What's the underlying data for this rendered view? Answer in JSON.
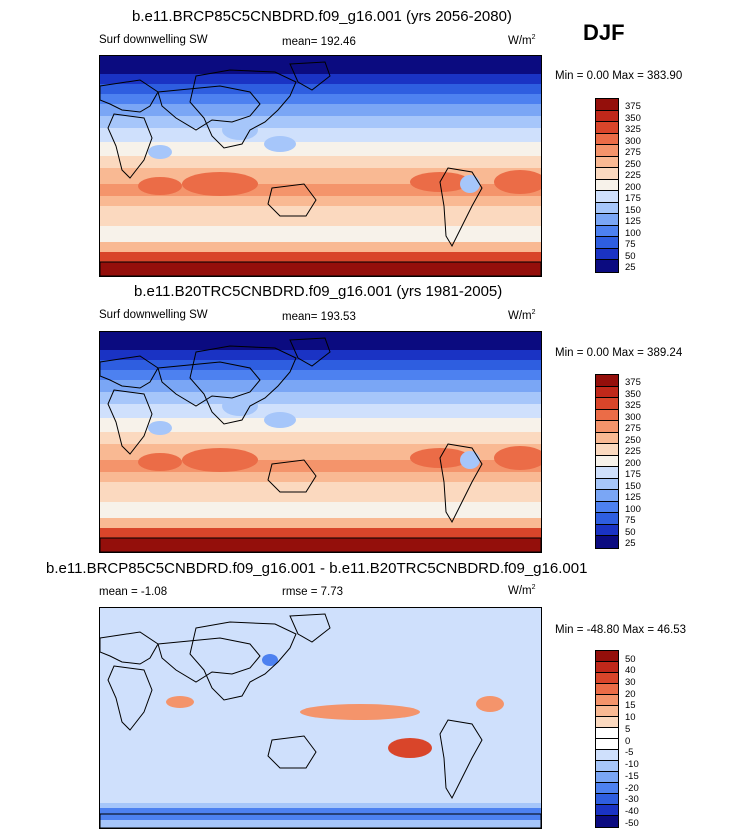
{
  "season": "DJF",
  "colors": {
    "abs_scale": [
      "#0b0b80",
      "#1a33c4",
      "#2e5ee0",
      "#4d81f0",
      "#7aa6f5",
      "#a6c6fa",
      "#cfe0fc",
      "#f7f2ea",
      "#fbd9bf",
      "#f9b993",
      "#f4946b",
      "#eb6c47",
      "#d9452a",
      "#c0281a",
      "#940f0b"
    ],
    "diff_scale": [
      "#0b0b80",
      "#1a33c4",
      "#2e5ee0",
      "#4d81f0",
      "#7aa6f5",
      "#a6c6fa",
      "#cfe0fc",
      "#ffffff",
      "#ffffff",
      "#fbd9bf",
      "#f9b993",
      "#f4946b",
      "#eb6c47",
      "#d9452a",
      "#c0281a",
      "#940f0b"
    ]
  },
  "panels": [
    {
      "title": "b.e11.BRCP85C5CNBDRD.f09_g16.001 (yrs 2056-2080)",
      "left": "Surf downwelling SW",
      "center": "mean= 192.46",
      "units": "W/m",
      "units_sup": "2",
      "minmax": "Min =   0.00 Max = 383.90",
      "colorbar_labels": [
        "375",
        "350",
        "325",
        "300",
        "275",
        "250",
        "225",
        "200",
        "175",
        "150",
        "125",
        "100",
        "75",
        "50",
        "25"
      ]
    },
    {
      "title": "b.e11.B20TRC5CNBDRD.f09_g16.001 (yrs 1981-2005)",
      "left": "Surf downwelling SW",
      "center": "mean= 193.53",
      "units": "W/m",
      "units_sup": "2",
      "minmax": "Min =   0.00 Max = 389.24",
      "colorbar_labels": [
        "375",
        "350",
        "325",
        "300",
        "275",
        "250",
        "225",
        "200",
        "175",
        "150",
        "125",
        "100",
        "75",
        "50",
        "25"
      ]
    },
    {
      "title": "b.e11.BRCP85C5CNBDRD.f09_g16.001 - b.e11.B20TRC5CNBDRD.f09_g16.001",
      "left": "mean =  -1.08",
      "center": "rmse =   7.73",
      "units": "W/m",
      "units_sup": "2",
      "minmax": "Min = -48.80 Max =  46.53",
      "colorbar_labels": [
        "50",
        "40",
        "30",
        "20",
        "15",
        "10",
        "5",
        "0",
        "-5",
        "-10",
        "-15",
        "-20",
        "-30",
        "-40",
        "-50"
      ]
    }
  ],
  "chart_data": [
    {
      "type": "heatmap",
      "title": "b.e11.BRCP85C5CNBDRD.f09_g16.001 (yrs 2056-2080)",
      "variable": "Surf downwelling SW",
      "units": "W/m2",
      "season": "DJF",
      "mean": 192.46,
      "min": 0.0,
      "max": 383.9,
      "levels": [
        25,
        50,
        75,
        100,
        125,
        150,
        175,
        200,
        225,
        250,
        275,
        300,
        325,
        350,
        375
      ]
    },
    {
      "type": "heatmap",
      "title": "b.e11.B20TRC5CNBDRD.f09_g16.001 (yrs 1981-2005)",
      "variable": "Surf downwelling SW",
      "units": "W/m2",
      "season": "DJF",
      "mean": 193.53,
      "min": 0.0,
      "max": 389.24,
      "levels": [
        25,
        50,
        75,
        100,
        125,
        150,
        175,
        200,
        225,
        250,
        275,
        300,
        325,
        350,
        375
      ]
    },
    {
      "type": "heatmap",
      "title": "b.e11.BRCP85C5CNBDRD.f09_g16.001 - b.e11.B20TRC5CNBDRD.f09_g16.001",
      "units": "W/m2",
      "season": "DJF",
      "mean": -1.08,
      "rmse": 7.73,
      "min": -48.8,
      "max": 46.53,
      "levels": [
        -50,
        -40,
        -30,
        -20,
        -15,
        -10,
        -5,
        0,
        5,
        10,
        15,
        20,
        30,
        40,
        50
      ]
    }
  ]
}
